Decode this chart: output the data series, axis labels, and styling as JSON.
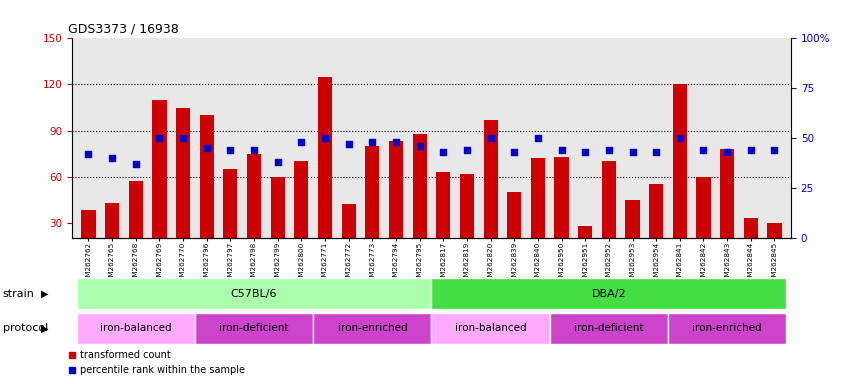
{
  "title": "GDS3373 / 16938",
  "samples": [
    "GSM262762",
    "GSM262765",
    "GSM262768",
    "GSM262769",
    "GSM262770",
    "GSM262796",
    "GSM262797",
    "GSM262798",
    "GSM262799",
    "GSM262800",
    "GSM262771",
    "GSM262772",
    "GSM262773",
    "GSM262794",
    "GSM262795",
    "GSM262817",
    "GSM262819",
    "GSM262820",
    "GSM262839",
    "GSM262840",
    "GSM262950",
    "GSM262951",
    "GSM262952",
    "GSM262953",
    "GSM262954",
    "GSM262841",
    "GSM262842",
    "GSM262843",
    "GSM262844",
    "GSM262845"
  ],
  "bar_values": [
    38,
    43,
    57,
    110,
    105,
    100,
    65,
    75,
    60,
    70,
    125,
    42,
    80,
    83,
    88,
    63,
    62,
    97,
    50,
    72,
    73,
    28,
    70,
    45,
    55,
    120,
    60,
    78,
    33,
    30
  ],
  "dot_values": [
    42,
    40,
    37,
    50,
    50,
    45,
    44,
    44,
    38,
    48,
    50,
    47,
    48,
    48,
    46,
    43,
    44,
    50,
    43,
    50,
    44,
    43,
    44,
    43,
    43,
    50,
    44,
    43,
    44,
    44
  ],
  "bar_color": "#cc0000",
  "dot_color": "#0000cc",
  "ylim_left": [
    20,
    150
  ],
  "ylim_right": [
    0,
    100
  ],
  "yticks_left": [
    30,
    60,
    90,
    120,
    150
  ],
  "yticks_right": [
    0,
    25,
    50,
    75,
    100
  ],
  "hlines": [
    60,
    90,
    120
  ],
  "strain_groups": [
    {
      "label": "C57BL/6",
      "start": 0,
      "end": 15,
      "color": "#aaffaa"
    },
    {
      "label": "DBA/2",
      "start": 15,
      "end": 30,
      "color": "#44dd44"
    }
  ],
  "protocol_groups": [
    {
      "label": "iron-balanced",
      "start": 0,
      "end": 5,
      "color": "#ffaaff"
    },
    {
      "label": "iron-deficient",
      "start": 5,
      "end": 10,
      "color": "#dd44dd"
    },
    {
      "label": "iron-enriched",
      "start": 10,
      "end": 15,
      "color": "#dd44dd"
    },
    {
      "label": "iron-balanced",
      "start": 15,
      "end": 20,
      "color": "#ffaaff"
    },
    {
      "label": "iron-deficient",
      "start": 20,
      "end": 25,
      "color": "#dd44dd"
    },
    {
      "label": "iron-enriched",
      "start": 25,
      "end": 30,
      "color": "#dd44dd"
    }
  ],
  "legend_bar_label": "transformed count",
  "legend_dot_label": "percentile rank within the sample",
  "strain_label": "strain",
  "protocol_label": "protocol",
  "bg_color": "#e8e8e8",
  "fig_bg": "#ffffff"
}
